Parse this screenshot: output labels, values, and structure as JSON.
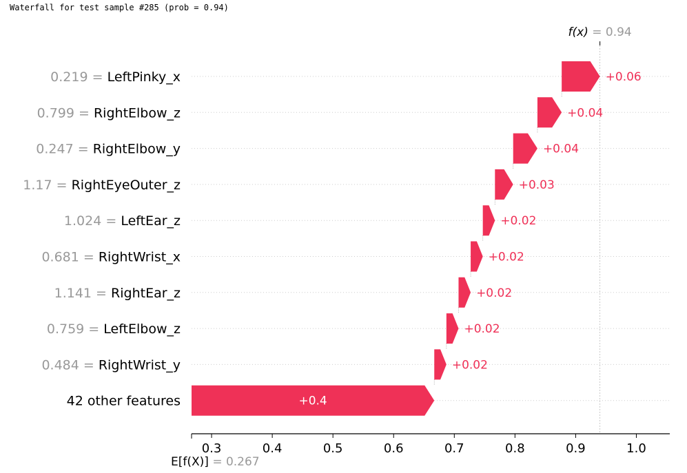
{
  "caption": "Waterfall for test sample #285 (prob = 0.94)",
  "chart_data": {
    "type": "waterfall",
    "title": "",
    "base_value": 0.267,
    "base_label": "= 0.267",
    "final_value": 0.94,
    "final_label": "= 0.94",
    "fx_label": "f(x)",
    "efx_label": "E[f(X)]",
    "xlim": [
      0.267,
      1.05
    ],
    "xticks": [
      "0.3",
      "0.4",
      "0.5",
      "0.6",
      "0.7",
      "0.8",
      "0.9",
      "1.0"
    ],
    "bars": [
      {
        "value": "0.219",
        "feature": "LeftPinky_x",
        "contribution": 0.06,
        "label": "+0.06"
      },
      {
        "value": "0.799",
        "feature": "RightElbow_z",
        "contribution": 0.04,
        "label": "+0.04"
      },
      {
        "value": "0.247",
        "feature": "RightElbow_y",
        "contribution": 0.04,
        "label": "+0.04"
      },
      {
        "value": "1.17",
        "feature": "RightEyeOuter_z",
        "contribution": 0.03,
        "label": "+0.03"
      },
      {
        "value": "1.024",
        "feature": "LeftEar_z",
        "contribution": 0.02,
        "label": "+0.02"
      },
      {
        "value": "0.681",
        "feature": "RightWrist_x",
        "contribution": 0.02,
        "label": "+0.02"
      },
      {
        "value": "1.141",
        "feature": "RightEar_z",
        "contribution": 0.02,
        "label": "+0.02"
      },
      {
        "value": "0.759",
        "feature": "LeftElbow_z",
        "contribution": 0.02,
        "label": "+0.02"
      },
      {
        "value": "0.484",
        "feature": "RightWrist_y",
        "contribution": 0.02,
        "label": "+0.02"
      },
      {
        "value": "",
        "feature": "42 other features",
        "contribution": 0.4,
        "label": "+0.4"
      }
    ],
    "colors": {
      "positive": "#ff0051",
      "negative": "#008bfb",
      "bar_fill": "#ef3157"
    }
  }
}
